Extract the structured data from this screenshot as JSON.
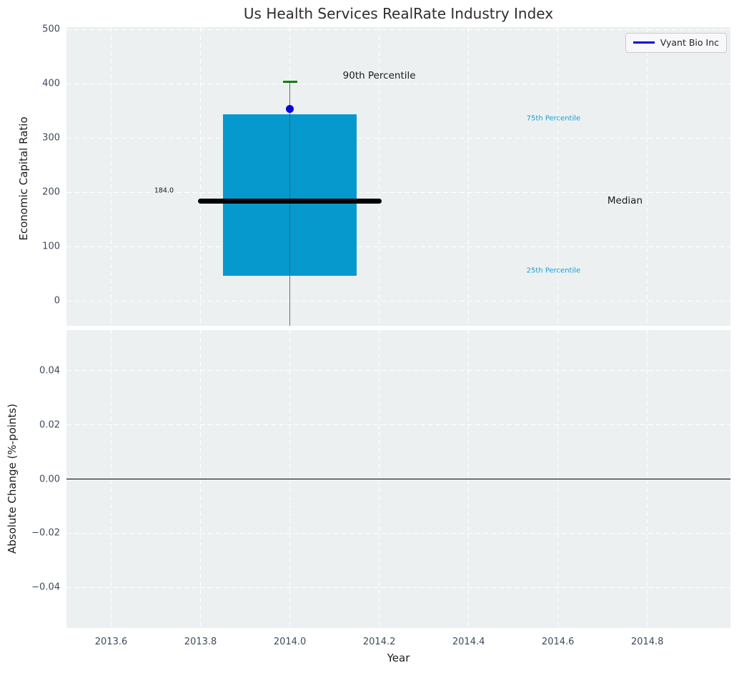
{
  "figure": {
    "title": "Us Health Services RealRate Industry Index"
  },
  "legend": {
    "label": "Vyant Bio Inc"
  },
  "colors": {
    "plot_bg": "#ecf0f1",
    "grid": "#ffffff",
    "box_fill": "#0699cd",
    "median_line": "#000000",
    "whisker": "#555555",
    "cap_90th": "#0a830a",
    "company_line": "#0404dd",
    "tick_label": "#3e4b5e",
    "axis_label": "#1c1c1c",
    "percentile_text": "#1a9fd4",
    "annotation_text": "#1a1a1a",
    "zero_line": "#000000"
  },
  "chart_data": [
    {
      "id": "economic-capital-ratio",
      "type": "boxplot",
      "title": "Us Health Services RealRate Industry Index",
      "ylabel": "Economic Capital Ratio",
      "ylim": [
        -46,
        504
      ],
      "yticks": [
        0,
        100,
        200,
        300,
        400,
        500
      ],
      "ytick_labels": [
        "0",
        "100",
        "200",
        "300",
        "400",
        "500"
      ],
      "xlim": [
        2013.5,
        2014.986
      ],
      "xticks": [
        2013.6,
        2013.8,
        2014.0,
        2014.2,
        2014.4,
        2014.6,
        2014.8
      ],
      "grid": true,
      "legend_position": "upper right",
      "box": {
        "x": 2014.0,
        "width": 0.3,
        "q1_25th": 46,
        "median": 184.0,
        "q3_75th": 343,
        "p90": 404,
        "p10": null,
        "p10_note": "lower whisker extends below visible axis (clipped at bottom of panel)",
        "median_label": "184.0",
        "median_line_span": 0.41
      },
      "company_point": {
        "name": "Vyant Bio Inc",
        "x": 2014.0,
        "y": 354
      },
      "annotations": [
        {
          "text": "90th Percentile",
          "x": 2014.2,
          "y": 414,
          "align": "center",
          "size": 13.5,
          "color": "#1a1a1a"
        },
        {
          "text": "75th Percentile",
          "x": 2014.59,
          "y": 335,
          "align": "center",
          "size": 10,
          "color": "#1a9fd4"
        },
        {
          "text": "Median",
          "x": 2014.75,
          "y": 184,
          "align": "center",
          "size": 13.5,
          "color": "#1a1a1a"
        },
        {
          "text": "25th Percentile",
          "x": 2014.59,
          "y": 55,
          "align": "center",
          "size": 10,
          "color": "#1a9fd4"
        },
        {
          "text": "184.0",
          "x": 2013.74,
          "y": 203,
          "align": "right",
          "size": 9.5,
          "color": "#1a1a1a"
        }
      ]
    },
    {
      "id": "absolute-change",
      "type": "line",
      "ylabel": "Absolute Change (%-points)",
      "xlabel": "Year",
      "ylim": [
        -0.055,
        0.055
      ],
      "yticks": [
        0.04,
        0.02,
        0.0,
        -0.02,
        -0.04
      ],
      "ytick_labels": [
        "0.04",
        "0.02",
        "0.00",
        "−0.02",
        "−0.04"
      ],
      "xlim": [
        2013.5,
        2014.986
      ],
      "xticks": [
        2013.6,
        2013.8,
        2014.0,
        2014.2,
        2014.4,
        2014.6,
        2014.8
      ],
      "xtick_labels": [
        "2013.6",
        "2013.8",
        "2014.0",
        "2014.2",
        "2014.4",
        "2014.6",
        "2014.8"
      ],
      "grid": true,
      "zero_line": 0.0,
      "series": []
    }
  ]
}
